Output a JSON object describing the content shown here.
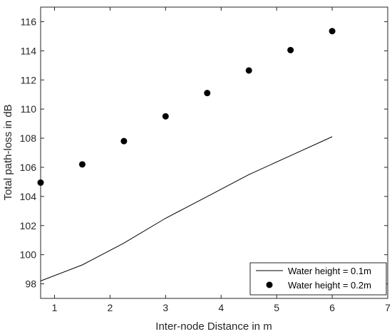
{
  "chart_data": {
    "type": "line",
    "xlabel": "Inter-node Distance in m",
    "ylabel": "Total path-loss in dB",
    "xlim": [
      0.75,
      7
    ],
    "ylim": [
      97,
      117
    ],
    "xticks": [
      "1",
      "2",
      "3",
      "4",
      "5",
      "6",
      "7"
    ],
    "yticks": [
      "98",
      "100",
      "102",
      "104",
      "106",
      "108",
      "110",
      "112",
      "114",
      "116"
    ],
    "grid": false,
    "legend_position": "bottom-right",
    "series": [
      {
        "name": "Water height = 0.1m",
        "style": "line",
        "color": "#000000",
        "x": [
          0.75,
          1.5,
          2.25,
          3.0,
          3.75,
          4.5,
          5.25,
          6.0
        ],
        "y": [
          98.2,
          99.3,
          100.8,
          102.5,
          104.0,
          105.5,
          106.8,
          108.1
        ]
      },
      {
        "name": "Water height = 0.2m",
        "style": "markers",
        "color": "#000000",
        "x": [
          0.75,
          1.5,
          2.25,
          3.0,
          3.75,
          4.5,
          5.25,
          6.0
        ],
        "y": [
          104.95,
          106.2,
          107.8,
          109.5,
          111.1,
          112.65,
          114.05,
          115.35
        ]
      }
    ]
  }
}
